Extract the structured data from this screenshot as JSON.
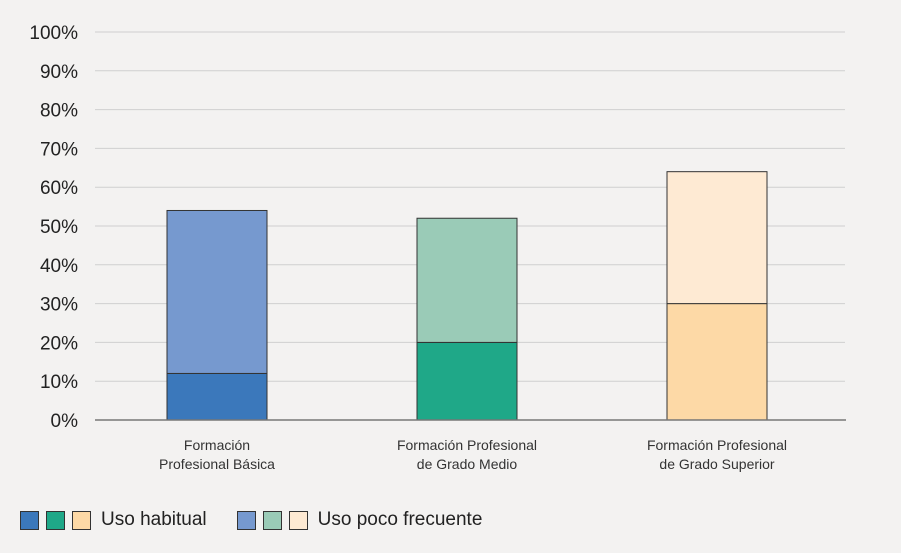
{
  "chart_data": {
    "type": "bar",
    "stacked": true,
    "categories": [
      [
        "Formación",
        "Profesional Básica"
      ],
      [
        "Formación Profesional",
        "de Grado Medio"
      ],
      [
        "Formación Profesional",
        "de Grado Superior"
      ]
    ],
    "y_tick_labels": [
      "0%",
      "10%",
      "20%",
      "30%",
      "40%",
      "50%",
      "60%",
      "70%",
      "80%",
      "90%",
      "100%"
    ],
    "ylim": [
      0,
      100
    ],
    "grid": true,
    "series": [
      {
        "name": "Uso habitual",
        "values": [
          12,
          20,
          30
        ],
        "colors": [
          "#3b78bb",
          "#1fa888",
          "#fdd9a6"
        ]
      },
      {
        "name": "Uso poco frecuente",
        "values": [
          42,
          32,
          34
        ],
        "colors": [
          "#7699cf",
          "#9acbb7",
          "#feead3"
        ]
      }
    ],
    "legend": {
      "placement": "bottom-left"
    }
  }
}
